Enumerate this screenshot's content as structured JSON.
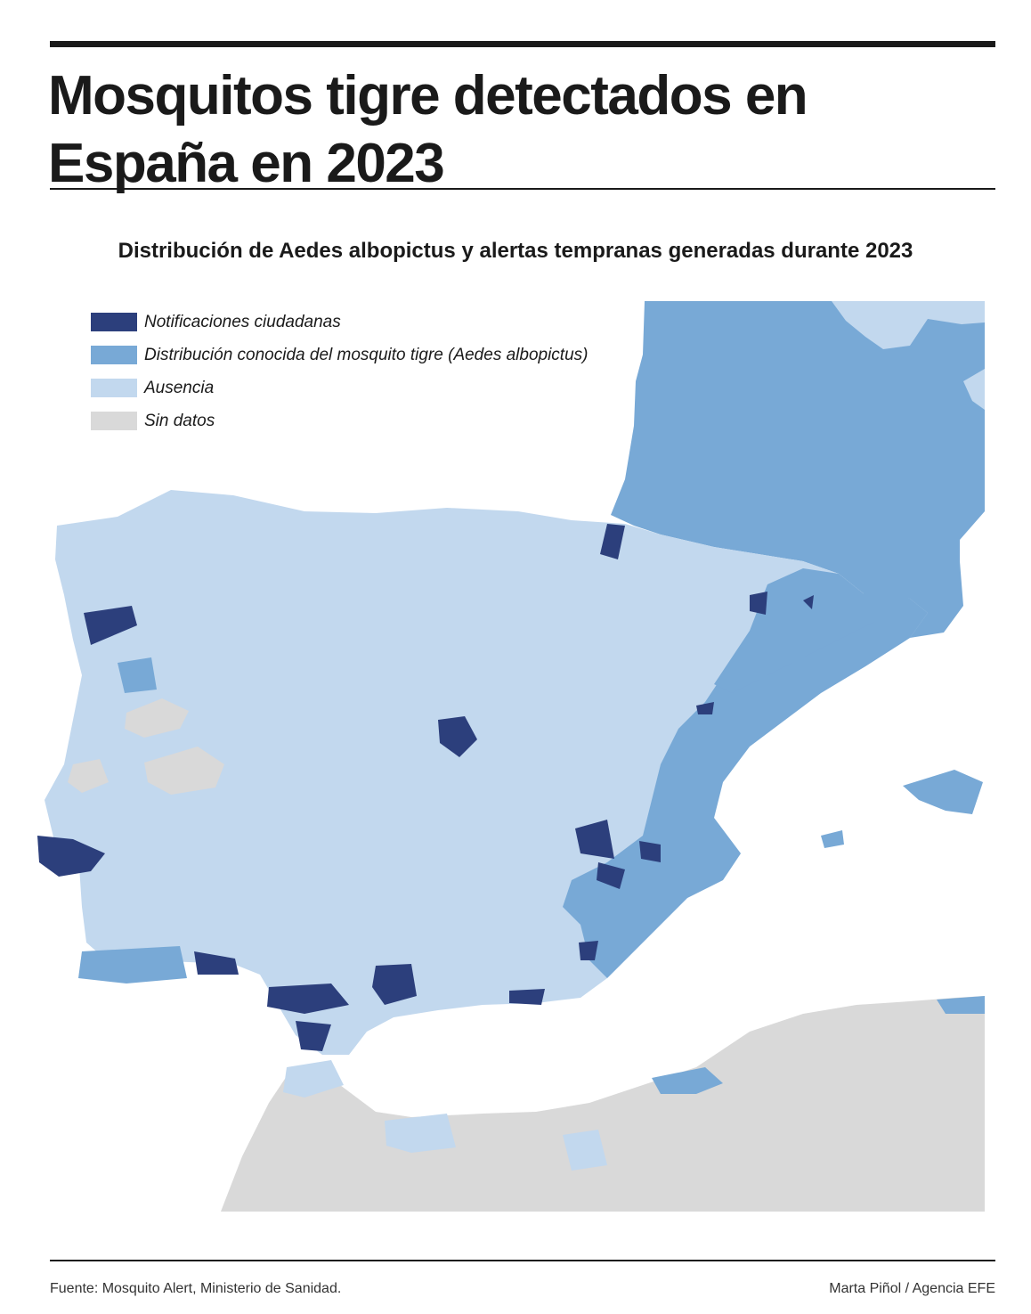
{
  "header": {
    "title_line1": "Mosquitos tigre detectados en",
    "title_line2": "España en 2023"
  },
  "subtitle": "Distribución de Aedes albopictus y alertas tempranas generadas durante 2023",
  "legend": {
    "items": [
      {
        "label": "Notificaciones ciudadanas",
        "color": "#2c3f7c"
      },
      {
        "label": "Distribución conocida del mosquito tigre (Aedes albopictus)",
        "color": "#78a9d6"
      },
      {
        "label": "Ausencia",
        "color": "#c2d8ee"
      },
      {
        "label": "Sin datos",
        "color": "#d9d9d9"
      }
    ]
  },
  "colors": {
    "notificaciones": "#2c3f7c",
    "distribucion": "#78a9d6",
    "ausencia": "#c2d8ee",
    "sin_datos": "#d9d9d9",
    "sea": "#ffffff"
  },
  "footer": {
    "source": "Fuente: Mosquito Alert, Ministerio de Sanidad.",
    "credit": "Marta Piñol / Agencia EFE"
  }
}
